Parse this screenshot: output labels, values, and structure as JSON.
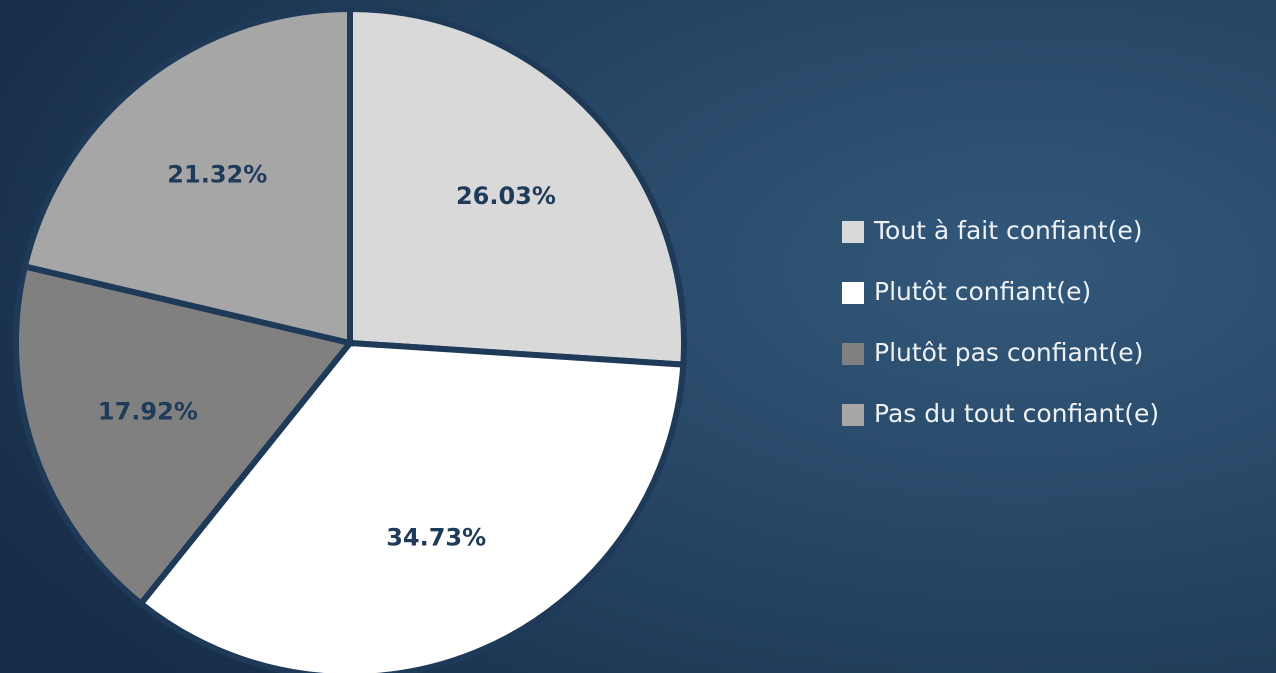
{
  "chart_data": {
    "type": "pie",
    "categories": [
      "Tout à fait confiant(e)",
      "Plutôt confiant(e)",
      "Plutôt pas confiant(e)",
      "Pas du tout confiant(e)"
    ],
    "values": [
      26.03,
      34.73,
      17.92,
      21.32
    ],
    "value_labels": [
      "26.03%",
      "34.73%",
      "17.92%",
      "21.32%"
    ],
    "colors": [
      "#d9d9d9",
      "#ffffff",
      "#808080",
      "#a6a6a6"
    ],
    "legend": "right"
  }
}
